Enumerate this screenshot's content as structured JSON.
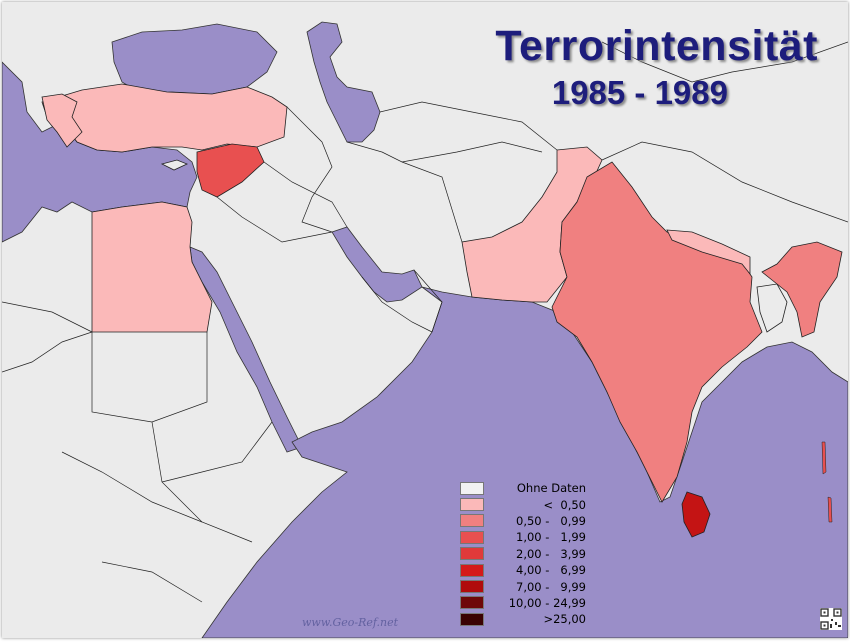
{
  "title": "Terrorintensität",
  "subtitle": "1985 - 1989",
  "legend": {
    "items": [
      {
        "label": "Ohne Daten",
        "color": "#f2f2f2"
      },
      {
        "label": "<  0,50",
        "color": "#fbb9b9"
      },
      {
        "label": "0,50 -   0,99",
        "color": "#f08080"
      },
      {
        "label": "1,00 -   1,99",
        "color": "#e85050"
      },
      {
        "label": "2,00 -   3,99",
        "color": "#e03a3a"
      },
      {
        "label": "4,00 -   6,99",
        "color": "#d41a1a"
      },
      {
        "label": "7,00 -   9,99",
        "color": "#b00c0c"
      },
      {
        "label": "10,00 - 24,99",
        "color": "#6e0808"
      },
      {
        "label": ">25,00",
        "color": "#3a0202"
      }
    ]
  },
  "regions": {
    "turkey": "< 0,50",
    "greece": "< 0,50",
    "syria": "1,00 - 1,99",
    "egypt": "< 0,50",
    "pakistan": "< 0,50",
    "nepal": "< 0,50",
    "india": "0,50 - 0,99",
    "myanmar": "0,50 - 0,99",
    "sri_lanka": "7,00 - 9,99"
  },
  "colors": {
    "water": "#9a8ec8",
    "land_nodata": "#ebebeb",
    "border": "#222222"
  },
  "watermark": "www.Geo-Ref.net"
}
